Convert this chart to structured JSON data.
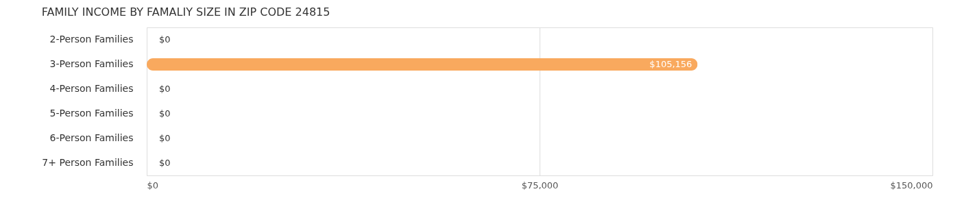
{
  "chart_data": {
    "type": "bar",
    "orientation": "horizontal",
    "title": "FAMILY INCOME BY FAMALIY SIZE IN ZIP CODE 24815",
    "categories": [
      "2-Person Families",
      "3-Person Families",
      "4-Person Families",
      "5-Person Families",
      "6-Person Families",
      "7+ Person Families"
    ],
    "values": [
      0,
      105156,
      0,
      0,
      0,
      0
    ],
    "colors": [
      "#f7a8c4",
      "#f9a95e",
      "#f2aaa8",
      "#aac4ea",
      "#cfaed0",
      "#7fcfcf"
    ],
    "value_labels": [
      "$0",
      "$105,156",
      "$0",
      "$0",
      "$0",
      "$0"
    ],
    "xlim": [
      0,
      150000
    ],
    "xticks": [
      {
        "value": 0,
        "label": "$0"
      },
      {
        "value": 75000,
        "label": "$75,000"
      },
      {
        "value": 150000,
        "label": "$150,000"
      }
    ],
    "grid": "x"
  }
}
